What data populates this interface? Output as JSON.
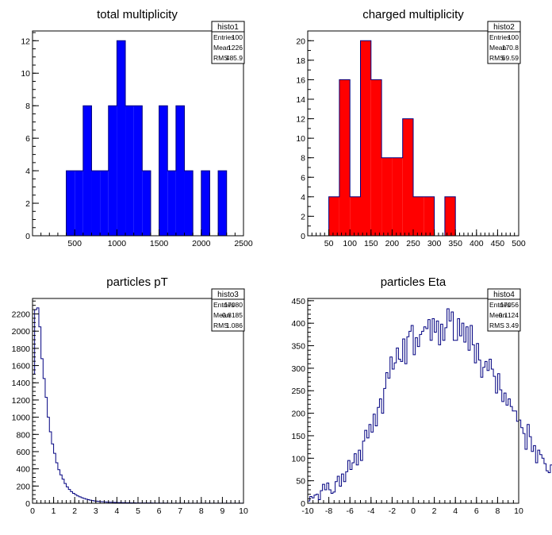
{
  "chart_data": [
    {
      "type": "bar",
      "title": "total multiplicity",
      "fill": "#0000ff",
      "stats": {
        "name": "histo1",
        "rows": [
          [
            "Entries",
            "100"
          ],
          [
            "Mean",
            "1226"
          ],
          [
            "RMS",
            "485.9"
          ]
        ]
      },
      "xlim": [
        0,
        2500
      ],
      "ylim": [
        0,
        12.6
      ],
      "xticks": [
        500,
        1000,
        1500,
        2000,
        2500
      ],
      "xticklabels": [
        "500",
        "1000",
        "1500",
        "2000",
        "2500"
      ],
      "xminor": 100,
      "yticks": [
        0,
        2,
        4,
        6,
        8,
        10,
        12
      ],
      "yticklabels": [
        "0",
        "2",
        "4",
        "6",
        "8",
        "10",
        "12"
      ],
      "yminor": 0.5,
      "bin_edges": [
        0,
        100,
        200,
        300,
        400,
        500,
        600,
        700,
        800,
        900,
        1000,
        1100,
        1200,
        1300,
        1400,
        1500,
        1600,
        1700,
        1800,
        1900,
        2000,
        2100,
        2200,
        2300,
        2400,
        2500
      ],
      "values": [
        0,
        0,
        0,
        0,
        4,
        4,
        8,
        4,
        4,
        8,
        12,
        8,
        8,
        4,
        0,
        8,
        4,
        8,
        4,
        0,
        4,
        0,
        4,
        0,
        0
      ]
    },
    {
      "type": "bar",
      "title": "charged multiplicity",
      "fill": "#ff0000",
      "stats": {
        "name": "histo2",
        "rows": [
          [
            "Entries",
            "100"
          ],
          [
            "Mean",
            "170.8"
          ],
          [
            "RMS",
            "69.59"
          ]
        ]
      },
      "xlim": [
        0,
        500
      ],
      "ylim": [
        0,
        21
      ],
      "xticks": [
        50,
        100,
        150,
        200,
        250,
        300,
        350,
        400,
        450,
        500
      ],
      "xticklabels": [
        "50",
        "100",
        "150",
        "200",
        "250",
        "300",
        "350",
        "400",
        "450",
        "500"
      ],
      "xminor": 10,
      "yticks": [
        0,
        2,
        4,
        6,
        8,
        10,
        12,
        14,
        16,
        18,
        20
      ],
      "yticklabels": [
        "0",
        "2",
        "4",
        "6",
        "8",
        "10",
        "12",
        "14",
        "16",
        "18",
        "20"
      ],
      "yminor": 1,
      "bin_edges": [
        0,
        25,
        50,
        75,
        100,
        125,
        150,
        175,
        200,
        225,
        250,
        275,
        300,
        325,
        350,
        375,
        400,
        425,
        450,
        475,
        500
      ],
      "values": [
        0,
        0,
        4,
        16,
        4,
        20,
        16,
        8,
        8,
        12,
        4,
        4,
        0,
        4,
        0,
        0,
        0,
        0,
        0,
        0
      ]
    },
    {
      "type": "area",
      "title": "particles pT",
      "stats": {
        "name": "histo3",
        "rows": [
          [
            "Entries",
            "17080"
          ],
          [
            "Mean",
            "0.8185"
          ],
          [
            "RMS",
            "1.086"
          ]
        ]
      },
      "xlim": [
        0,
        10
      ],
      "ylim": [
        0,
        2380
      ],
      "xticks": [
        0,
        1,
        2,
        3,
        4,
        5,
        6,
        7,
        8,
        9,
        10
      ],
      "xticklabels": [
        "0",
        "1",
        "2",
        "3",
        "4",
        "5",
        "6",
        "7",
        "8",
        "9",
        "10"
      ],
      "xminor": 0.2,
      "yticks": [
        0,
        200,
        400,
        600,
        800,
        1000,
        1200,
        1400,
        1600,
        1800,
        2000,
        2200
      ],
      "yticklabels": [
        "0",
        "200",
        "400",
        "600",
        "800",
        "1000",
        "1200",
        "1400",
        "1600",
        "1800",
        "2000",
        "2200"
      ],
      "yminor": 50,
      "bin_width": 0.1,
      "values": [
        1500,
        2250,
        2270,
        2050,
        1680,
        1450,
        1230,
        1000,
        830,
        690,
        580,
        470,
        390,
        330,
        280,
        230,
        190,
        160,
        135,
        115,
        100,
        85,
        75,
        65,
        55,
        48,
        42,
        36,
        31,
        27,
        24,
        21,
        19,
        17,
        15,
        13,
        12,
        11,
        10,
        9,
        8,
        8,
        7,
        7,
        6,
        6,
        5,
        5,
        5,
        4,
        4,
        4,
        3,
        3,
        3,
        3,
        3,
        2,
        2,
        2,
        2,
        2,
        2,
        2,
        1,
        1,
        1,
        1,
        1,
        1,
        1,
        1,
        1,
        1,
        1,
        1,
        1,
        1,
        1,
        1,
        1,
        1,
        1,
        1,
        1,
        1,
        1,
        1,
        1,
        1,
        1,
        1,
        1,
        1,
        1,
        1,
        1,
        1,
        1,
        1
      ]
    },
    {
      "type": "area",
      "title": "particles Eta",
      "stats": {
        "name": "histo4",
        "rows": [
          [
            "Entries",
            "17056"
          ],
          [
            "Mean",
            "-0.1124"
          ],
          [
            "RMS",
            "3.49"
          ]
        ]
      },
      "xlim": [
        -10,
        10
      ],
      "ylim": [
        0,
        455
      ],
      "xticks": [
        -10,
        -8,
        -6,
        -4,
        -2,
        0,
        2,
        4,
        6,
        8,
        10
      ],
      "xticklabels": [
        "-10",
        "-8",
        "-6",
        "-4",
        "-2",
        "0",
        "2",
        "4",
        "6",
        "8",
        "10"
      ],
      "xminor": 0.5,
      "yticks": [
        0,
        50,
        100,
        150,
        200,
        250,
        300,
        350,
        400,
        450
      ],
      "yticklabels": [
        "0",
        "50",
        "100",
        "150",
        "200",
        "250",
        "300",
        "350",
        "400",
        "450"
      ],
      "yminor": 10,
      "bin_width": 0.2,
      "values": [
        5,
        15,
        12,
        18,
        20,
        8,
        28,
        42,
        30,
        45,
        30,
        22,
        25,
        48,
        60,
        38,
        65,
        48,
        70,
        95,
        75,
        90,
        110,
        85,
        118,
        95,
        138,
        162,
        145,
        175,
        158,
        198,
        172,
        213,
        232,
        200,
        255,
        290,
        278,
        325,
        298,
        312,
        345,
        320,
        315,
        365,
        310,
        370,
        382,
        395,
        330,
        368,
        348,
        375,
        382,
        392,
        388,
        408,
        362,
        410,
        380,
        405,
        352,
        398,
        362,
        390,
        432,
        405,
        425,
        362,
        362,
        410,
        372,
        400,
        358,
        392,
        340,
        395,
        352,
        312,
        355,
        318,
        280,
        302,
        315,
        295,
        320,
        298,
        282,
        245,
        288,
        252,
        226,
        245,
        218,
        232,
        215,
        205,
        205,
        182,
        185,
        168,
        155,
        120,
        175,
        148,
        115,
        128,
        90,
        118,
        108,
        100,
        88,
        72,
        68,
        85,
        62,
        72,
        55,
        45,
        50,
        28,
        62,
        42,
        38,
        32,
        18,
        50,
        42,
        28,
        12,
        36,
        8,
        3,
        18,
        20,
        28,
        12,
        15,
        10,
        22,
        20,
        28,
        22,
        12,
        22,
        18,
        10,
        15,
        2,
        8,
        12,
        6,
        10,
        5,
        4,
        2,
        8,
        3,
        10,
        2,
        1,
        2,
        3,
        1,
        2,
        1,
        2,
        2,
        1,
        2,
        3,
        3,
        1,
        2,
        1,
        2,
        3,
        2,
        1,
        5,
        2,
        2,
        3,
        1,
        2,
        1,
        1,
        1,
        1,
        1,
        1,
        1,
        1,
        1,
        1,
        1,
        1,
        1,
        1,
        1,
        1,
        1
      ]
    }
  ]
}
